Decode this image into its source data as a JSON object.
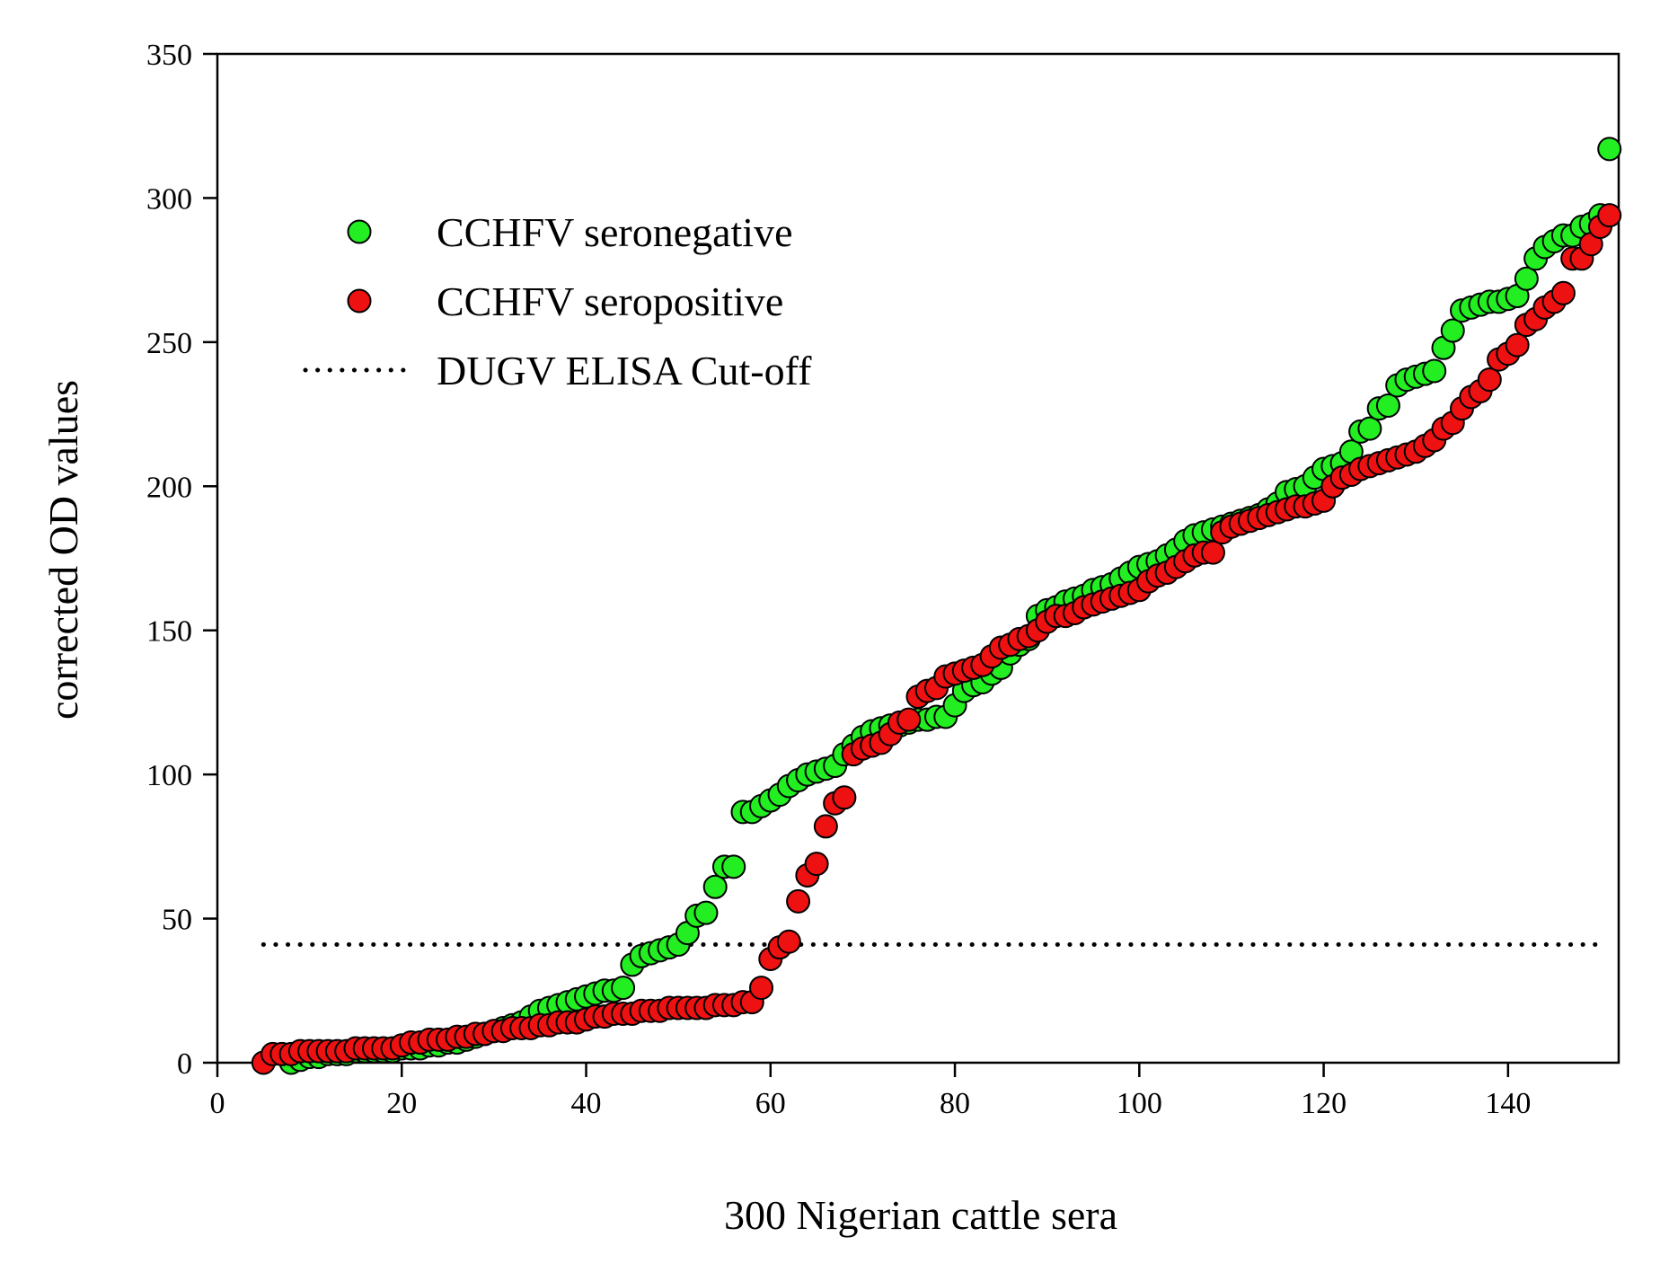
{
  "chart_data": {
    "type": "scatter",
    "title": "",
    "xlabel": "300 Nigerian cattle sera",
    "ylabel": "corrected OD values",
    "xlim": [
      0,
      152
    ],
    "ylim": [
      0,
      350
    ],
    "xticks": [
      0,
      20,
      40,
      60,
      80,
      100,
      120,
      140
    ],
    "yticks": [
      0,
      50,
      100,
      150,
      200,
      250,
      300,
      350
    ],
    "grid": false,
    "legend_position": "top-left",
    "legend": [
      {
        "label": "CCHFV seronegative",
        "kind": "marker",
        "series": "seronegative"
      },
      {
        "label": "CCHFV seropositive",
        "kind": "marker",
        "series": "seropositive"
      },
      {
        "label": "DUGV ELISA Cut-off",
        "kind": "dotted-line",
        "series": "cutoff"
      }
    ],
    "series": [
      {
        "name": "CCHFV seronegative",
        "key": "seronegative",
        "color": "#22ee22",
        "stroke": "#000000",
        "x_start": 8,
        "x_step": 1,
        "values": [
          0,
          1,
          2,
          2,
          3,
          3,
          3,
          4,
          4,
          4,
          4,
          4,
          5,
          5,
          5,
          6,
          6,
          7,
          7,
          8,
          9,
          10,
          11,
          12,
          13,
          14,
          16,
          18,
          19,
          20,
          21,
          22,
          23,
          24,
          25,
          25,
          26,
          34,
          37,
          38,
          39,
          40,
          41,
          45,
          51,
          52,
          61,
          68,
          68,
          87,
          87,
          89,
          91,
          93,
          96,
          98,
          100,
          101,
          102,
          103,
          107,
          110,
          113,
          115,
          116,
          117,
          117,
          118,
          119,
          119,
          120,
          120,
          124,
          129,
          131,
          132,
          135,
          137,
          142,
          145,
          147,
          155,
          157,
          158,
          160,
          161,
          162,
          164,
          165,
          166,
          168,
          170,
          172,
          173,
          174,
          176,
          178,
          181,
          183,
          184,
          185,
          186,
          187,
          188,
          189,
          190,
          192,
          194,
          198,
          199,
          200,
          203,
          206,
          207,
          208,
          212,
          219,
          220,
          227,
          228,
          235,
          237,
          238,
          239,
          240,
          248,
          254,
          261,
          262,
          263,
          264,
          264,
          265,
          266,
          272,
          279,
          283,
          285,
          287,
          287,
          290,
          291,
          294,
          317
        ]
      },
      {
        "name": "CCHFV seropositive",
        "key": "seropositive",
        "color": "#ee1111",
        "stroke": "#000000",
        "x_start": 5,
        "x_step": 1,
        "values": [
          0,
          3,
          3,
          3,
          4,
          4,
          4,
          4,
          4,
          4,
          5,
          5,
          5,
          5,
          5,
          6,
          7,
          7,
          8,
          8,
          8,
          9,
          9,
          10,
          10,
          11,
          11,
          12,
          12,
          12,
          13,
          13,
          14,
          14,
          14,
          15,
          16,
          16,
          17,
          17,
          17,
          18,
          18,
          18,
          19,
          19,
          19,
          19,
          19,
          20,
          20,
          20,
          21,
          21,
          26,
          36,
          40,
          42,
          56,
          65,
          69,
          82,
          90,
          92,
          107,
          109,
          110,
          111,
          114,
          118,
          119,
          127,
          129,
          130,
          134,
          135,
          136,
          137,
          138,
          141,
          144,
          145,
          147,
          148,
          150,
          153,
          155,
          155,
          156,
          158,
          159,
          160,
          161,
          162,
          163,
          164,
          167,
          169,
          170,
          172,
          174,
          176,
          177,
          177,
          184,
          186,
          187,
          188,
          189,
          190,
          191,
          192,
          193,
          193,
          194,
          195,
          200,
          203,
          204,
          206,
          207,
          208,
          209,
          210,
          211,
          212,
          214,
          216,
          220,
          222,
          227,
          231,
          233,
          237,
          244,
          246,
          249,
          256,
          258,
          262,
          264,
          267,
          279,
          279,
          284,
          290,
          294
        ]
      }
    ],
    "reference_lines": [
      {
        "name": "DUGV ELISA Cut-off",
        "y": 41,
        "x_from": 5,
        "x_to": 150,
        "style": "dotted",
        "color": "#000000"
      }
    ]
  }
}
